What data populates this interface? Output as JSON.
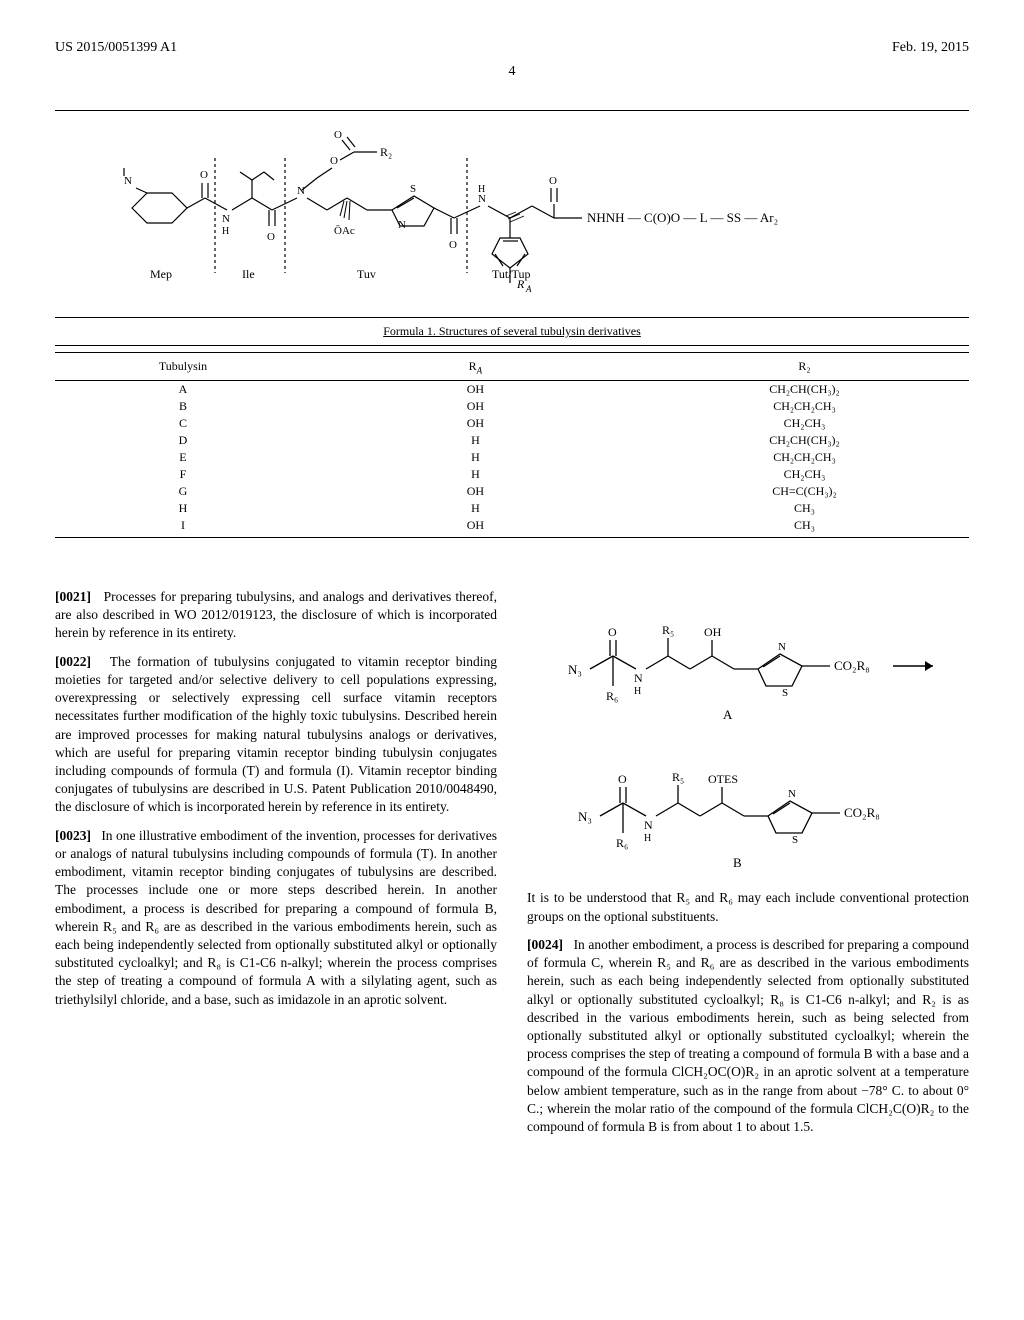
{
  "header": {
    "left": "US 2015/0051399 A1",
    "right": "Feb. 19, 2015"
  },
  "page_number": "4",
  "formula": {
    "labels": {
      "mep": "Mep",
      "ile": "Ile",
      "tuv": "Tuv",
      "tut": "Tut/Tup"
    },
    "caption": "Formula 1. Structures of several tubulysin derivatives",
    "R2": "R₂",
    "OAc": "ŌAc",
    "RA": "R_A",
    "tail": "NHNH—C(O)O—L—SS—Ar₂"
  },
  "table": {
    "headers": [
      "Tubulysin",
      "R_A",
      "R₂"
    ],
    "rows": [
      [
        "A",
        "OH",
        "CH₂CH(CH₃)₂"
      ],
      [
        "B",
        "OH",
        "CH₂CH₂CH₃"
      ],
      [
        "C",
        "OH",
        "CH₂CH₃"
      ],
      [
        "D",
        "H",
        "CH₂CH(CH₃)₂"
      ],
      [
        "E",
        "H",
        "CH₂CH₂CH₃"
      ],
      [
        "F",
        "H",
        "CH₂CH₃"
      ],
      [
        "G",
        "OH",
        "CH=C(CH₃)₂"
      ],
      [
        "H",
        "H",
        "CH₃"
      ],
      [
        "I",
        "OH",
        "CH₃"
      ]
    ]
  },
  "paragraphs": {
    "p21_num": "[0021]",
    "p21": "Processes for preparing tubulysins, and analogs and derivatives thereof, are also described in WO 2012/019123, the disclosure of which is incorporated herein by reference in its entirety.",
    "p22_num": "[0022]",
    "p22": "The formation of tubulysins conjugated to vitamin receptor binding moieties for targeted and/or selective delivery to cell populations expressing, overexpressing or selectively expressing cell surface vitamin receptors necessitates further modification of the highly toxic tubulysins. Described herein are improved processes for making natural tubulysins analogs or derivatives, which are useful for preparing vitamin receptor binding tubulysin conjugates including compounds of formula (T) and formula (I). Vitamin receptor binding conjugates of tubulysins are described in U.S. Patent Publication 2010/0048490, the disclosure of which is incorporated herein by reference in its entirety.",
    "p23_num": "[0023]",
    "p23": "In one illustrative embodiment of the invention, processes for derivatives or analogs of natural tubulysins including compounds of formula (T). In another embodiment, vitamin receptor binding conjugates of tubulysins are described. The processes include one or more steps described herein. In another embodiment, a process is described for preparing a compound of formula B, wherein R₅ and R₆ are as described in the various embodiments herein, such as each being independently selected from optionally substituted alkyl or optionally substituted cycloalkyl; and R₈ is C1-C6 n-alkyl; wherein the process comprises the step of treating a compound of formula A with a silylating agent, such as triethylsilyl chloride, and a base, such as imidazole in an aprotic solvent.",
    "note": "It is to be understood that R₅ and R₆ may each include conventional protection groups on the optional substituents.",
    "p24_num": "[0024]",
    "p24": "In another embodiment, a process is described for preparing a compound of formula C, wherein R₅ and R₆ are as described in the various embodiments herein, such as each being independently selected from optionally substituted alkyl or optionally substituted cycloalkyl; R₈ is C1-C6 n-alkyl; and R₂ is as described in the various embodiments herein, such as being selected from optionally substituted alkyl or optionally substituted cycloalkyl; wherein the process comprises the step of treating a compound of formula B with a base and a compound of the formula ClCH₂OC(O)R₂ in an aprotic solvent at a temperature below ambient temperature, such as in the range from about −78° C. to about 0° C.; wherein the molar ratio of the compound of the formula ClCH₂C(O)R₂ to the compound of formula B is from about 1 to about 1.5."
  },
  "compoundA": {
    "label": "A",
    "groups": {
      "N3": "N₃",
      "R5": "R₅",
      "R6": "R₆",
      "OH": "OH",
      "CO2R8": "CO₂R₈"
    }
  },
  "compoundB": {
    "label": "B",
    "groups": {
      "N3": "N₃",
      "R5": "R₅",
      "R6": "R₆",
      "OTES": "OTES",
      "CO2R8": "CO₂R₈"
    }
  }
}
